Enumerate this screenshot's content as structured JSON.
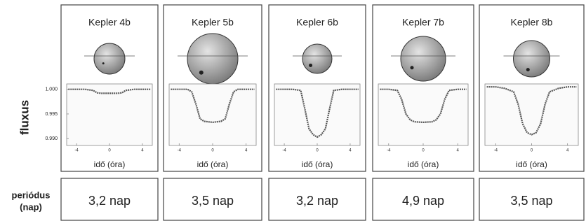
{
  "row_labels": {
    "flux": "fluxus",
    "period": [
      "periódus",
      "(nap)"
    ]
  },
  "chart_data": [
    {
      "type": "line",
      "title": "Kepler 4b",
      "x_label": "idő (óra)",
      "period": "3,2 nap",
      "color": "#555555",
      "xlim": [
        -5.2,
        5.2
      ],
      "xticks": [
        -4,
        0,
        4
      ],
      "ylim": [
        0.9886,
        1.0011
      ],
      "yticks": [
        {
          "value": 1,
          "label": "1.000"
        },
        {
          "value": 0.995,
          "label": "0.995"
        },
        {
          "value": 0.99,
          "label": "0.990"
        }
      ],
      "x": [
        -5,
        -4,
        -3,
        -2,
        -1.5,
        -1,
        0,
        1,
        1.5,
        2,
        3,
        4,
        5
      ],
      "y": [
        1.0,
        1.0,
        1.0,
        0.9998,
        0.9993,
        0.9992,
        0.9992,
        0.9992,
        0.9993,
        0.9998,
        1.0,
        1.0,
        1.0
      ]
    },
    {
      "type": "line",
      "title": "Kepler 5b",
      "x_label": "idő (óra)",
      "period": "3,5 nap",
      "color": "#555555",
      "xlim": [
        -5.2,
        5.2
      ],
      "xticks": [
        -4,
        0,
        4
      ],
      "x": [
        -5,
        -4,
        -3,
        -2.5,
        -2,
        -1.5,
        -1,
        0,
        1,
        1.5,
        2,
        2.5,
        3,
        4,
        5
      ],
      "y": [
        1.0,
        1.0,
        1.0,
        0.9995,
        0.997,
        0.994,
        0.9935,
        0.9933,
        0.9935,
        0.994,
        0.997,
        0.9995,
        1.0,
        1.0,
        1.0
      ]
    },
    {
      "type": "line",
      "title": "Kepler 6b",
      "x_label": "idő (óra)",
      "period": "3,2 nap",
      "color": "#555555",
      "xlim": [
        -5.2,
        5.2
      ],
      "xticks": [
        -4,
        0,
        4
      ],
      "x": [
        -5,
        -4,
        -3,
        -2,
        -1.5,
        -1,
        -0.5,
        0,
        0.5,
        1,
        1.5,
        2,
        3,
        4,
        5
      ],
      "y": [
        1.0,
        1.0,
        1.0,
        0.9998,
        0.996,
        0.992,
        0.9908,
        0.9903,
        0.9908,
        0.992,
        0.996,
        0.9998,
        1.0,
        1.0,
        1.0
      ]
    },
    {
      "type": "line",
      "title": "Kepler 7b",
      "x_label": "idő (óra)",
      "period": "4,9 nap",
      "color": "#555555",
      "xlim": [
        -5.2,
        5.2
      ],
      "xticks": [
        -4,
        0,
        4
      ],
      "x": [
        -5,
        -4,
        -3,
        -2.5,
        -2,
        -1.5,
        -1,
        0,
        1,
        1.5,
        2,
        2.5,
        3,
        4,
        5
      ],
      "y": [
        1.0,
        1.0,
        0.9998,
        0.998,
        0.995,
        0.9938,
        0.9934,
        0.9933,
        0.9934,
        0.9938,
        0.995,
        0.998,
        0.9998,
        1.0,
        1.0
      ]
    },
    {
      "type": "line",
      "title": "Kepler 8b",
      "x_label": "idő (óra)",
      "period": "3,5 nap",
      "color": "#555555",
      "xlim": [
        -5.2,
        5.2
      ],
      "xticks": [
        -4,
        0,
        4
      ],
      "x": [
        -5,
        -4,
        -3,
        -2,
        -1.5,
        -1,
        -0.5,
        0,
        0.5,
        1,
        1.5,
        2,
        3,
        4,
        5
      ],
      "y": [
        1.0005,
        1.0005,
        1.0002,
        0.9995,
        0.997,
        0.993,
        0.9912,
        0.9908,
        0.9912,
        0.993,
        0.997,
        0.9995,
        1.0002,
        1.0005,
        1.0005
      ]
    }
  ]
}
